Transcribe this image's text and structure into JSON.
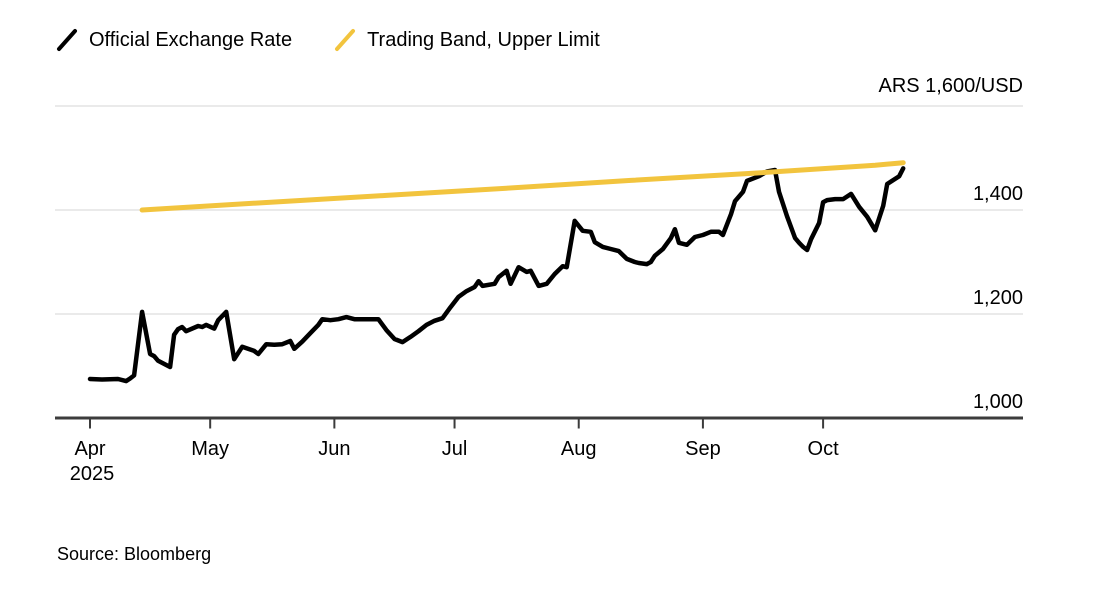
{
  "legend": {
    "items": [
      {
        "label": "Official Exchange Rate",
        "marker": "slash-icon",
        "color": "#000000"
      },
      {
        "label": "Trading Band, Upper Limit",
        "marker": "slash-icon",
        "color": "#F2C43E"
      }
    ]
  },
  "source_note": "Source: Bloomberg",
  "colors": {
    "official_line": "#000000",
    "band_line": "#F2C43E",
    "gridline": "#E4E4E4",
    "axis": "#3C3C3C",
    "text": "#000000",
    "background": "#FFFFFF"
  },
  "chart_data": {
    "type": "line",
    "title": "",
    "y_axis_unit_label": "ARS 1,600/USD",
    "ylim": [
      1000,
      1600
    ],
    "grid": "horizontal",
    "legend_position": "top-left",
    "y_ticks": [
      {
        "value": 1000,
        "label": "1,000"
      },
      {
        "value": 1200,
        "label": "1,200"
      },
      {
        "value": 1400,
        "label": "1,400"
      },
      {
        "value": 1600,
        "label": "ARS 1,600/USD"
      }
    ],
    "x_ticks": [
      {
        "date": "2025-04-01",
        "label": "Apr"
      },
      {
        "date": "2025-05-01",
        "label": "May"
      },
      {
        "date": "2025-06-01",
        "label": "Jun"
      },
      {
        "date": "2025-07-01",
        "label": "Jul"
      },
      {
        "date": "2025-08-01",
        "label": "Aug"
      },
      {
        "date": "2025-09-01",
        "label": "Sep"
      },
      {
        "date": "2025-10-01",
        "label": "Oct"
      }
    ],
    "x_year_label": "2025",
    "x_range": [
      "2025-04-01",
      "2025-10-22"
    ],
    "series": [
      {
        "name": "Official Exchange Rate",
        "color": "#000000",
        "stroke_width": 4.5,
        "points": [
          [
            "2025-04-01",
            1075
          ],
          [
            "2025-04-04",
            1074
          ],
          [
            "2025-04-08",
            1075
          ],
          [
            "2025-04-10",
            1071
          ],
          [
            "2025-04-11",
            1076
          ],
          [
            "2025-04-12",
            1082
          ],
          [
            "2025-04-14",
            1204
          ],
          [
            "2025-04-16",
            1123
          ],
          [
            "2025-04-17",
            1119
          ],
          [
            "2025-04-18",
            1110
          ],
          [
            "2025-04-21",
            1098
          ],
          [
            "2025-04-22",
            1160
          ],
          [
            "2025-04-23",
            1171
          ],
          [
            "2025-04-24",
            1175
          ],
          [
            "2025-04-25",
            1167
          ],
          [
            "2025-04-28",
            1177
          ],
          [
            "2025-04-29",
            1175
          ],
          [
            "2025-04-30",
            1179
          ],
          [
            "2025-05-02",
            1172
          ],
          [
            "2025-05-03",
            1188
          ],
          [
            "2025-05-05",
            1204
          ],
          [
            "2025-05-07",
            1113
          ],
          [
            "2025-05-09",
            1137
          ],
          [
            "2025-05-12",
            1129
          ],
          [
            "2025-05-13",
            1123
          ],
          [
            "2025-05-15",
            1142
          ],
          [
            "2025-05-17",
            1141
          ],
          [
            "2025-05-19",
            1142
          ],
          [
            "2025-05-21",
            1148
          ],
          [
            "2025-05-22",
            1133
          ],
          [
            "2025-05-24",
            1147
          ],
          [
            "2025-05-26",
            1163
          ],
          [
            "2025-05-28",
            1179
          ],
          [
            "2025-05-29",
            1190
          ],
          [
            "2025-05-31",
            1188
          ],
          [
            "2025-06-02",
            1190
          ],
          [
            "2025-06-04",
            1194
          ],
          [
            "2025-06-06",
            1190
          ],
          [
            "2025-06-09",
            1190
          ],
          [
            "2025-06-12",
            1190
          ],
          [
            "2025-06-14",
            1169
          ],
          [
            "2025-06-16",
            1152
          ],
          [
            "2025-06-18",
            1146
          ],
          [
            "2025-06-20",
            1156
          ],
          [
            "2025-06-22",
            1167
          ],
          [
            "2025-06-24",
            1179
          ],
          [
            "2025-06-26",
            1187
          ],
          [
            "2025-06-28",
            1192
          ],
          [
            "2025-06-30",
            1213
          ],
          [
            "2025-07-02",
            1233
          ],
          [
            "2025-07-04",
            1244
          ],
          [
            "2025-07-06",
            1252
          ],
          [
            "2025-07-07",
            1263
          ],
          [
            "2025-07-08",
            1254
          ],
          [
            "2025-07-11",
            1258
          ],
          [
            "2025-07-12",
            1271
          ],
          [
            "2025-07-14",
            1283
          ],
          [
            "2025-07-15",
            1258
          ],
          [
            "2025-07-17",
            1290
          ],
          [
            "2025-07-19",
            1281
          ],
          [
            "2025-07-20",
            1283
          ],
          [
            "2025-07-22",
            1254
          ],
          [
            "2025-07-24",
            1258
          ],
          [
            "2025-07-26",
            1277
          ],
          [
            "2025-07-28",
            1292
          ],
          [
            "2025-07-29",
            1290
          ],
          [
            "2025-07-31",
            1379
          ],
          [
            "2025-08-02",
            1360
          ],
          [
            "2025-08-04",
            1358
          ],
          [
            "2025-08-05",
            1338
          ],
          [
            "2025-08-07",
            1329
          ],
          [
            "2025-08-09",
            1325
          ],
          [
            "2025-08-11",
            1321
          ],
          [
            "2025-08-13",
            1306
          ],
          [
            "2025-08-15",
            1300
          ],
          [
            "2025-08-16",
            1298
          ],
          [
            "2025-08-18",
            1296
          ],
          [
            "2025-08-19",
            1300
          ],
          [
            "2025-08-20",
            1312
          ],
          [
            "2025-08-22",
            1325
          ],
          [
            "2025-08-24",
            1346
          ],
          [
            "2025-08-25",
            1363
          ],
          [
            "2025-08-26",
            1337
          ],
          [
            "2025-08-28",
            1333
          ],
          [
            "2025-08-30",
            1348
          ],
          [
            "2025-09-01",
            1352
          ],
          [
            "2025-09-03",
            1358
          ],
          [
            "2025-09-05",
            1358
          ],
          [
            "2025-09-06",
            1352
          ],
          [
            "2025-09-08",
            1392
          ],
          [
            "2025-09-09",
            1417
          ],
          [
            "2025-09-11",
            1435
          ],
          [
            "2025-09-12",
            1456
          ],
          [
            "2025-09-15",
            1465
          ],
          [
            "2025-09-17",
            1474
          ],
          [
            "2025-09-19",
            1477
          ],
          [
            "2025-09-20",
            1435
          ],
          [
            "2025-09-22",
            1388
          ],
          [
            "2025-09-24",
            1346
          ],
          [
            "2025-09-25",
            1337
          ],
          [
            "2025-09-26",
            1329
          ],
          [
            "2025-09-27",
            1323
          ],
          [
            "2025-09-28",
            1344
          ],
          [
            "2025-09-30",
            1375
          ],
          [
            "2025-10-01",
            1415
          ],
          [
            "2025-10-02",
            1419
          ],
          [
            "2025-10-04",
            1421
          ],
          [
            "2025-10-06",
            1421
          ],
          [
            "2025-10-08",
            1431
          ],
          [
            "2025-10-10",
            1406
          ],
          [
            "2025-10-12",
            1387
          ],
          [
            "2025-10-14",
            1361
          ],
          [
            "2025-10-16",
            1408
          ],
          [
            "2025-10-17",
            1450
          ],
          [
            "2025-10-20",
            1465
          ],
          [
            "2025-10-21",
            1480
          ]
        ]
      },
      {
        "name": "Trading Band, Upper Limit",
        "color": "#F2C43E",
        "stroke_width": 5,
        "points": [
          [
            "2025-04-14",
            1400
          ],
          [
            "2025-05-14",
            1414
          ],
          [
            "2025-06-14",
            1428
          ],
          [
            "2025-07-14",
            1442
          ],
          [
            "2025-08-14",
            1457
          ],
          [
            "2025-09-14",
            1471
          ],
          [
            "2025-10-14",
            1486
          ],
          [
            "2025-10-21",
            1491
          ]
        ]
      }
    ]
  }
}
